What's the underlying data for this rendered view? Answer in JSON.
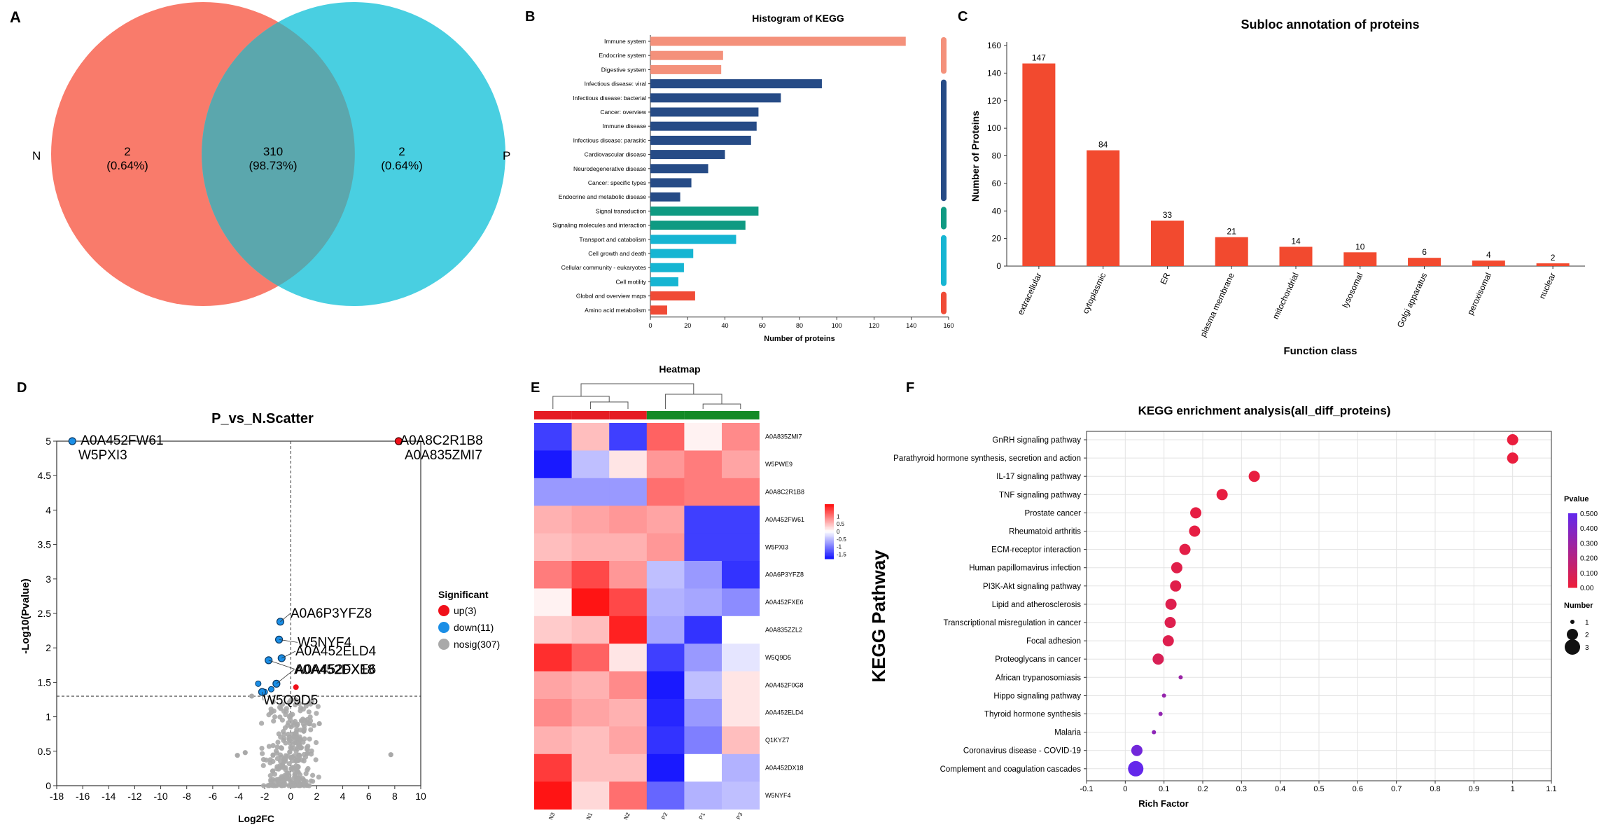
{
  "panels": {
    "A": {
      "letter": "A",
      "chart_data": {
        "type": "venn",
        "sets": [
          "N",
          "P"
        ],
        "regions": [
          {
            "label": "2",
            "pct": "(0.64%)"
          },
          {
            "label": "310",
            "pct": "(98.73%)"
          },
          {
            "label": "2",
            "pct": "(0.64%)"
          }
        ],
        "colors": [
          "#f97b6b",
          "#49cfe1",
          "#5ba7ad"
        ]
      }
    },
    "B": {
      "letter": "B",
      "chart_data": {
        "type": "bar",
        "orientation": "horizontal",
        "title": "Histogram of KEGG",
        "xlabel": "Number of proteins",
        "xlim": [
          0,
          160
        ],
        "xticks": [
          "0",
          "20",
          "40",
          "60",
          "80",
          "100",
          "120",
          "140",
          "160"
        ],
        "categories": [
          "Immune system",
          "Endocrine system",
          "Digestive system",
          "Infectious disease: viral",
          "Infectious disease: bacterial",
          "Cancer: overview",
          "Immune disease",
          "Infectious disease: parasitic",
          "Cardiovascular disease",
          "Neurodegenerative disease",
          "Cancer: specific types",
          "Endocrine and metabolic disease",
          "Signal transduction",
          "Signaling molecules and interaction",
          "Transport and catabolism",
          "Cell growth and death",
          "Cellular community - eukaryotes",
          "Cell motility",
          "Global and overview maps",
          "Amino acid metabolism"
        ],
        "values": [
          137,
          39,
          38,
          92,
          70,
          58,
          57,
          54,
          40,
          31,
          22,
          16,
          58,
          51,
          46,
          23,
          18,
          15,
          24,
          9
        ],
        "group": [
          0,
          0,
          0,
          1,
          1,
          1,
          1,
          1,
          1,
          1,
          1,
          1,
          2,
          2,
          3,
          3,
          3,
          3,
          4,
          4
        ],
        "group_colors": [
          "#f4917b",
          "#264b86",
          "#0f9a82",
          "#16b5d2",
          "#f04b36"
        ]
      }
    },
    "C": {
      "letter": "C",
      "chart_data": {
        "type": "bar",
        "title": "Subloc annotation of proteins",
        "xlabel": "Function class",
        "ylabel": "Number of Proteins",
        "ylim": [
          0,
          160
        ],
        "yticks": [
          "0",
          "20",
          "40",
          "60",
          "80",
          "100",
          "120",
          "140",
          "160"
        ],
        "categories": [
          "extracellular",
          "cytoplasmic",
          "ER",
          "plasma membrane",
          "mitochondrial",
          "lysosomal",
          "Golgi apparatus",
          "peroxisomal",
          "nuclear"
        ],
        "values": [
          147,
          84,
          33,
          21,
          14,
          10,
          6,
          4,
          2
        ],
        "value_labels": [
          "147",
          "84",
          "33",
          "21",
          "14",
          "10",
          "6",
          "4",
          "2"
        ],
        "color": "#f24a2f"
      }
    },
    "D": {
      "letter": "D",
      "chart_data": {
        "type": "scatter",
        "title": "P_vs_N.Scatter",
        "xlabel": "Log2FC",
        "ylabel": "-Log10(Pvalue)",
        "xlim": [
          -18,
          10
        ],
        "ylim": [
          0,
          5
        ],
        "xticks": [
          "-18",
          "-16",
          "-14",
          "-12",
          "-10",
          "-8",
          "-6",
          "-4",
          "-2",
          "0",
          "2",
          "4",
          "6",
          "8",
          "10"
        ],
        "yticks": [
          "0",
          "0.5",
          "1",
          "1.5",
          "2",
          "2.5",
          "3",
          "3.5",
          "4",
          "4.5",
          "5"
        ],
        "legend_title": "Significant",
        "legend": [
          {
            "label": "up(3)",
            "color": "#f0101a"
          },
          {
            "label": "down(11)",
            "color": "#1a8ee6"
          },
          {
            "label": "nosig(307)",
            "color": "#a9a9a9"
          }
        ],
        "labeled_points": [
          {
            "x": -16.8,
            "y": 5.0,
            "cls": 1,
            "label": "A0A452FW61",
            "label2": "W5PXI3"
          },
          {
            "x": 8.3,
            "y": 5.0,
            "cls": 0,
            "label": "A0A8C2R1B8",
            "label2": "A0A835ZMI7"
          },
          {
            "x": -0.8,
            "y": 2.38,
            "cls": 1,
            "label": "A0A6P3YFZ8"
          },
          {
            "x": -0.9,
            "y": 2.12,
            "cls": 1,
            "label": "W5NYF4"
          },
          {
            "x": -0.7,
            "y": 1.85,
            "cls": 1,
            "label": "A0A452ELD4"
          },
          {
            "x": -1.7,
            "y": 1.82,
            "cls": 1,
            "label": "A0A452FXE6"
          },
          {
            "x": -1.1,
            "y": 1.48,
            "cls": 1,
            "label": "A0A452DX18"
          },
          {
            "x": -2.2,
            "y": 1.36,
            "cls": 1,
            "label": "W5Q9D5"
          }
        ],
        "extra_points": [
          {
            "x": -2.5,
            "y": 1.48,
            "cls": 1
          },
          {
            "x": -2.0,
            "y": 1.36,
            "cls": 1
          },
          {
            "x": -1.5,
            "y": 1.4,
            "cls": 1
          },
          {
            "x": 0.4,
            "y": 1.43,
            "cls": 0
          },
          {
            "x": -4.1,
            "y": 0.44,
            "cls": 2
          },
          {
            "x": -3.5,
            "y": 0.48,
            "cls": 2
          },
          {
            "x": 7.7,
            "y": 0.45,
            "cls": 2
          },
          {
            "x": -3.0,
            "y": 1.3,
            "cls": 2
          },
          {
            "x": 2.2,
            "y": 0.9,
            "cls": 2
          }
        ],
        "cutoff_y": 1.3,
        "cutoff_x": 0
      }
    },
    "E": {
      "letter": "E",
      "chart_data": {
        "type": "heatmap",
        "title": "Heatmap",
        "columns": [
          "N3",
          "N1",
          "N2",
          "P2",
          "P1",
          "P3"
        ],
        "rows": [
          "A0A835ZMI7",
          "W5PWE9",
          "A0A8C2R1B8",
          "A0A452FW61",
          "W5PXI3",
          "A0A6P3YFZ8",
          "A0A452FXE6",
          "A0A835ZZL2",
          "W5Q9D5",
          "A0A452F0G8",
          "A0A452ELD4",
          "Q1KYZ7",
          "A0A452DX18",
          "W5NYF4"
        ],
        "values": [
          [
            -1.5,
            0.5,
            -1.5,
            1.2,
            0.1,
            0.9
          ],
          [
            -1.8,
            -0.5,
            0.2,
            0.8,
            1.0,
            0.7
          ],
          [
            -0.8,
            -0.8,
            -0.8,
            1.1,
            1.0,
            1.0
          ],
          [
            0.6,
            0.7,
            0.8,
            0.7,
            -1.5,
            -1.5
          ],
          [
            0.5,
            0.6,
            0.6,
            0.8,
            -1.5,
            -1.5
          ],
          [
            1.0,
            1.4,
            0.8,
            -0.5,
            -0.8,
            -1.6
          ],
          [
            0.1,
            1.8,
            1.4,
            -0.6,
            -0.7,
            -0.9
          ],
          [
            0.4,
            0.5,
            1.7,
            -0.7,
            -1.6,
            0.0
          ],
          [
            1.6,
            1.2,
            0.2,
            -1.5,
            -0.8,
            -0.2
          ],
          [
            0.7,
            0.6,
            0.9,
            -1.8,
            -0.5,
            0.2
          ],
          [
            0.9,
            0.7,
            0.6,
            -1.7,
            -0.8,
            0.2
          ],
          [
            0.6,
            0.5,
            0.7,
            -1.6,
            -1.0,
            0.5
          ],
          [
            1.5,
            0.5,
            0.5,
            -1.8,
            0.0,
            -0.6
          ],
          [
            1.8,
            0.3,
            1.1,
            -1.2,
            -0.6,
            -0.5
          ]
        ],
        "groups": [
          {
            "name": "N",
            "color": "#e51c23"
          },
          {
            "name": "P",
            "color": "#138a26"
          }
        ],
        "colorbar_ticks": [
          "1",
          "0.5",
          "0",
          "-0.5",
          "-1",
          "-1.5"
        ],
        "colorbar_values": [
          1,
          0.5,
          0,
          -0.5,
          -1,
          -1.5
        ]
      }
    },
    "F": {
      "letter": "F",
      "chart_data": {
        "type": "scatter",
        "title": "KEGG enrichment analysis(all_diff_proteins)",
        "xlabel": "Rich Factor",
        "ylabel": "KEGG Pathway",
        "xlim": [
          -0.1,
          1.1
        ],
        "xticks": [
          "-0.1",
          "0",
          "0.1",
          "0.2",
          "0.3",
          "0.4",
          "0.5",
          "0.6",
          "0.7",
          "0.8",
          "0.9",
          "1",
          "1.1"
        ],
        "pathways": [
          "GnRH signaling pathway",
          "Parathyroid hormone synthesis, secretion and action",
          "IL-17 signaling pathway",
          "TNF signaling pathway",
          "Prostate cancer",
          "Rheumatoid arthritis",
          "ECM-receptor interaction",
          "Human papillomavirus infection",
          "PI3K-Akt signaling pathway",
          "Lipid and atherosclerosis",
          "Transcriptional misregulation in cancer",
          "Focal adhesion",
          "Proteoglycans in cancer",
          "African trypanosomiasis",
          "Hippo signaling pathway",
          "Thyroid hormone synthesis",
          "Malaria",
          "Coronavirus disease - COVID-19",
          "Complement and coagulation cascades"
        ],
        "rich_factor": [
          1.0,
          1.0,
          0.333,
          0.25,
          0.182,
          0.179,
          0.154,
          0.133,
          0.13,
          0.118,
          0.116,
          0.111,
          0.085,
          0.143,
          0.1,
          0.091,
          0.074,
          0.03,
          0.027
        ],
        "number": [
          2,
          2,
          2,
          2,
          2,
          2,
          2,
          2,
          2,
          2,
          2,
          2,
          2,
          1,
          1,
          1,
          1,
          2,
          3
        ],
        "pvalue": [
          0.005,
          0.005,
          0.01,
          0.015,
          0.02,
          0.02,
          0.03,
          0.04,
          0.04,
          0.05,
          0.05,
          0.05,
          0.07,
          0.3,
          0.32,
          0.33,
          0.35,
          0.45,
          0.5
        ],
        "pvalue_legend_title": "Pvalue",
        "pvalue_ticks": [
          "0.500",
          "0.400",
          "0.300",
          "0.200",
          "0.100",
          "0.00"
        ],
        "number_legend_title": "Number",
        "number_legend": [
          "1",
          "2",
          "3"
        ]
      }
    }
  }
}
